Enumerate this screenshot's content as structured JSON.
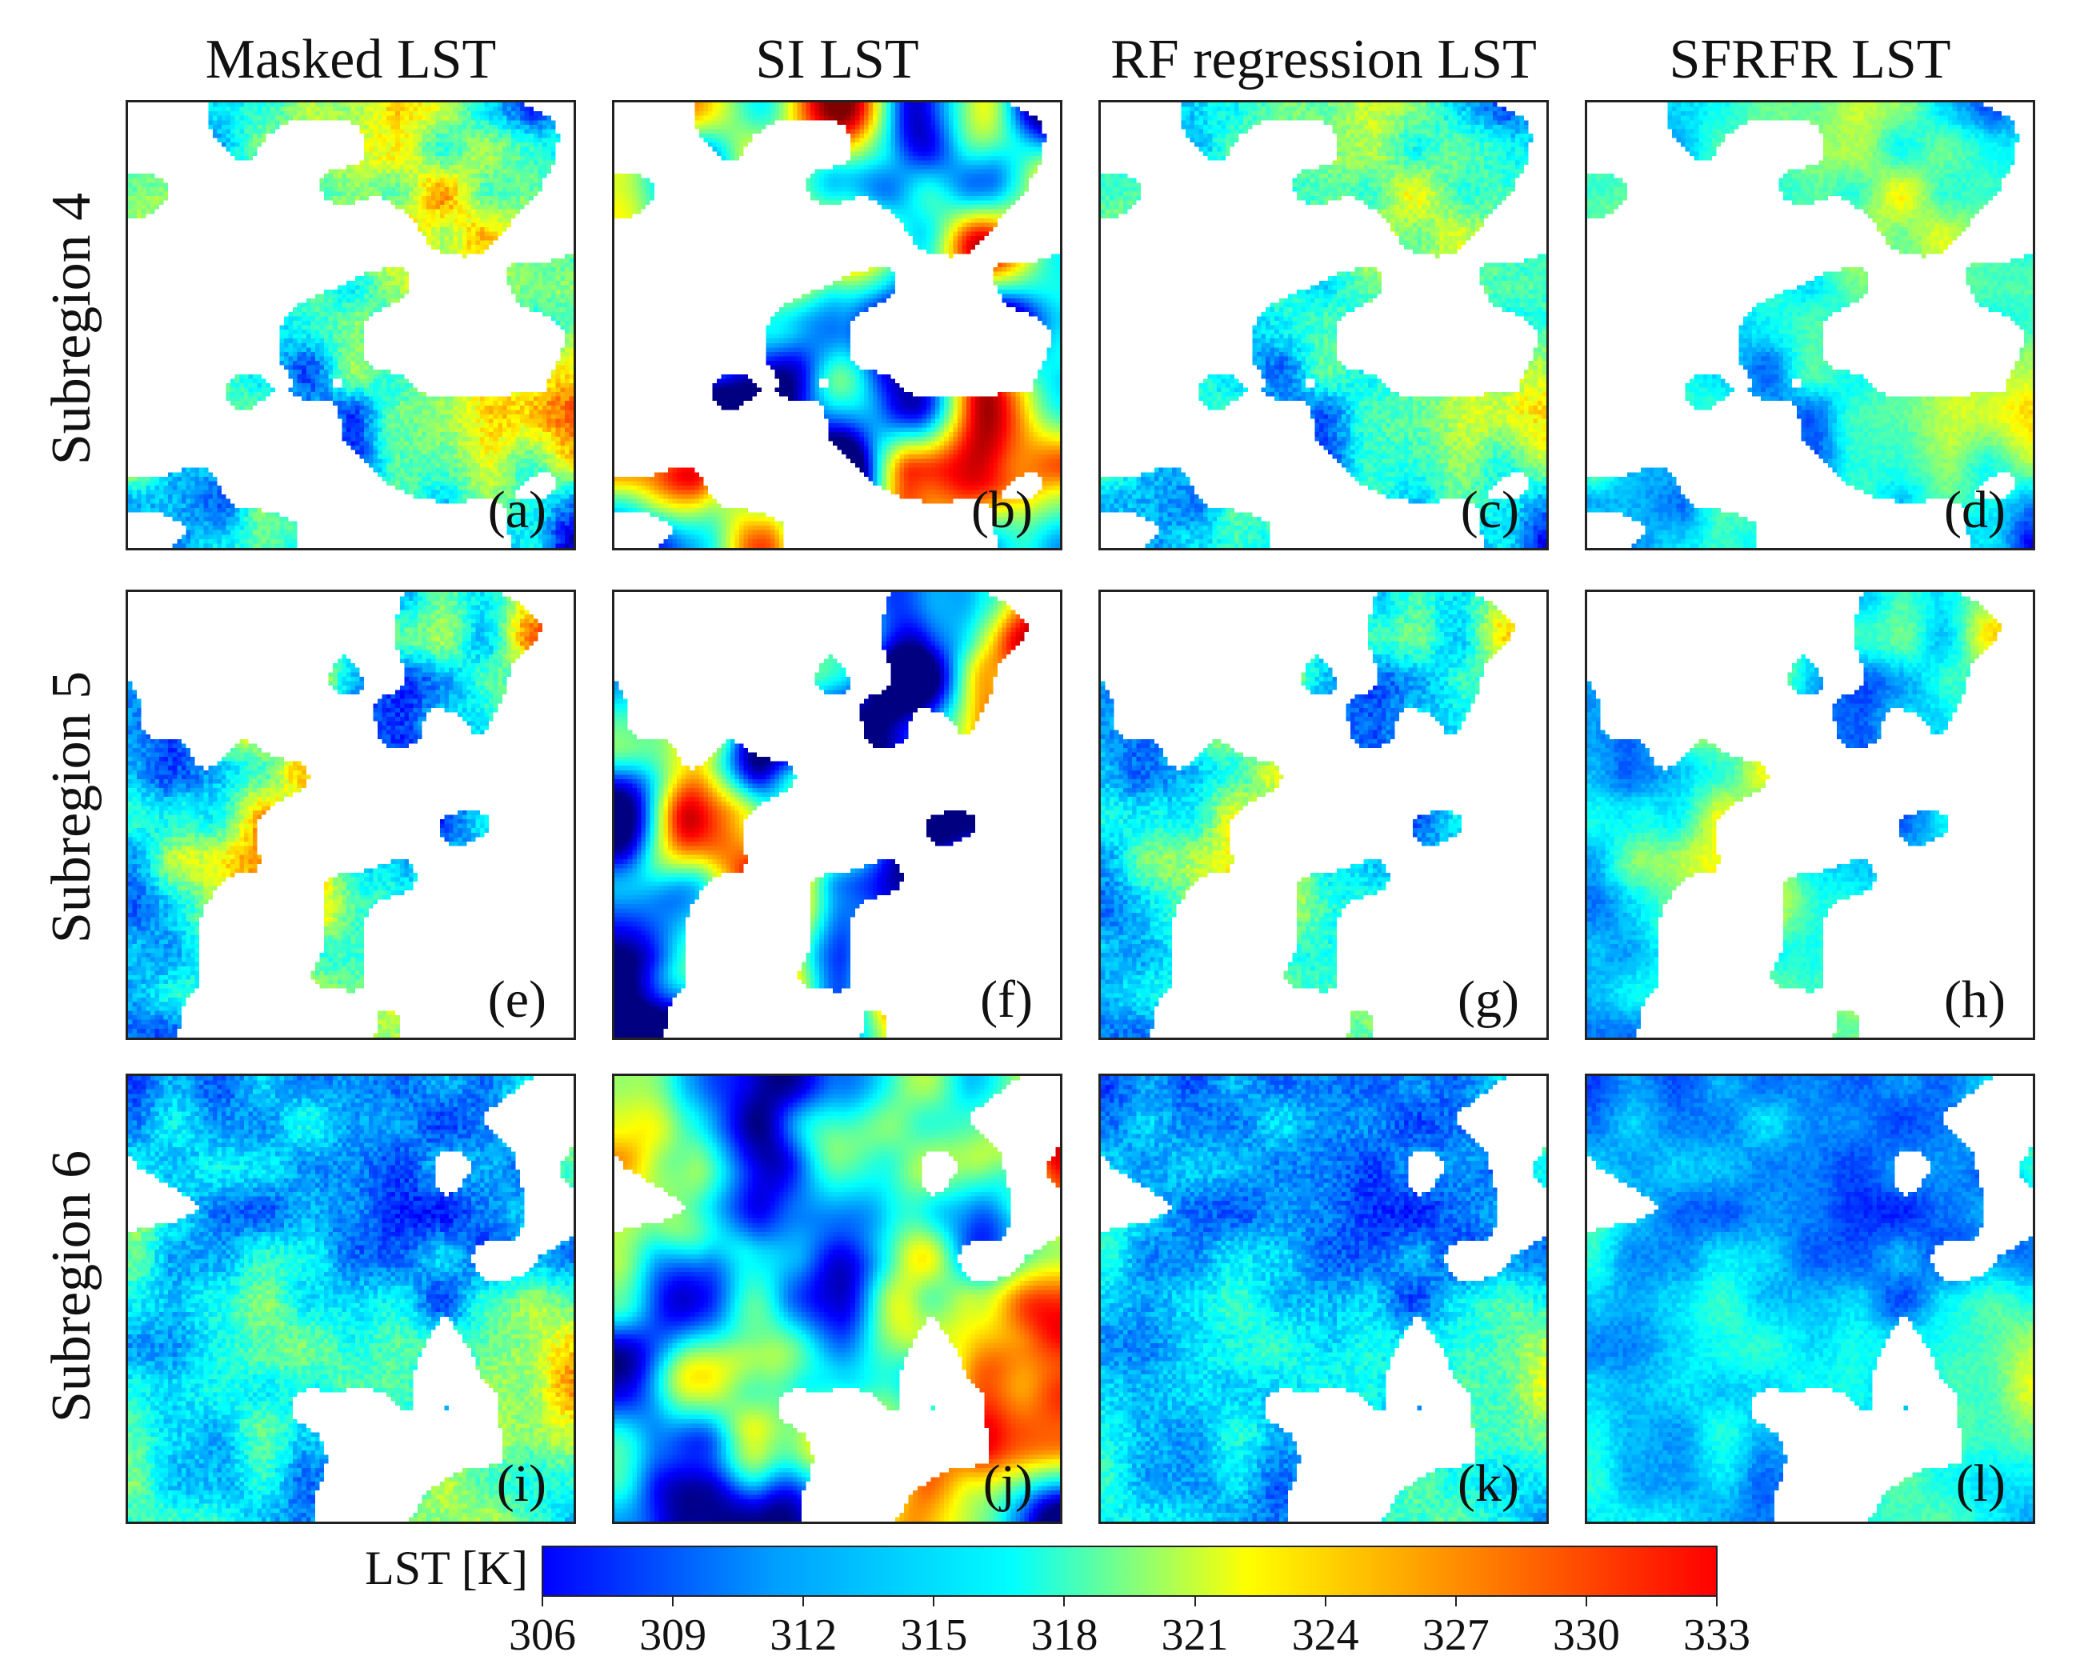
{
  "columns": [
    "Masked LST",
    "SI LST",
    "RF regression LST",
    "SFRFR LST"
  ],
  "rows": [
    {
      "label": "Subregion 4",
      "panels": [
        {
          "tag": "(a)",
          "method": "masked"
        },
        {
          "tag": "(b)",
          "method": "si"
        },
        {
          "tag": "(c)",
          "method": "rf"
        },
        {
          "tag": "(d)",
          "method": "sfrfr"
        }
      ]
    },
    {
      "label": "Subregion 5",
      "panels": [
        {
          "tag": "(e)",
          "method": "masked"
        },
        {
          "tag": "(f)",
          "method": "si"
        },
        {
          "tag": "(g)",
          "method": "rf"
        },
        {
          "tag": "(h)",
          "method": "sfrfr"
        }
      ]
    },
    {
      "label": "Subregion 6",
      "panels": [
        {
          "tag": "(i)",
          "method": "masked"
        },
        {
          "tag": "(j)",
          "method": "si"
        },
        {
          "tag": "(k)",
          "method": "rf"
        },
        {
          "tag": "(l)",
          "method": "sfrfr"
        }
      ]
    }
  ],
  "colorbar": {
    "title": "LST [K]",
    "min": 306,
    "max": 333,
    "ticks": [
      "306",
      "309",
      "312",
      "315",
      "318",
      "321",
      "324",
      "327",
      "330",
      "333"
    ],
    "colormap": "jet",
    "colors": [
      "#0000ff",
      "#00a0ff",
      "#00ffff",
      "#ffff00",
      "#ff8000",
      "#ff0000"
    ]
  }
}
